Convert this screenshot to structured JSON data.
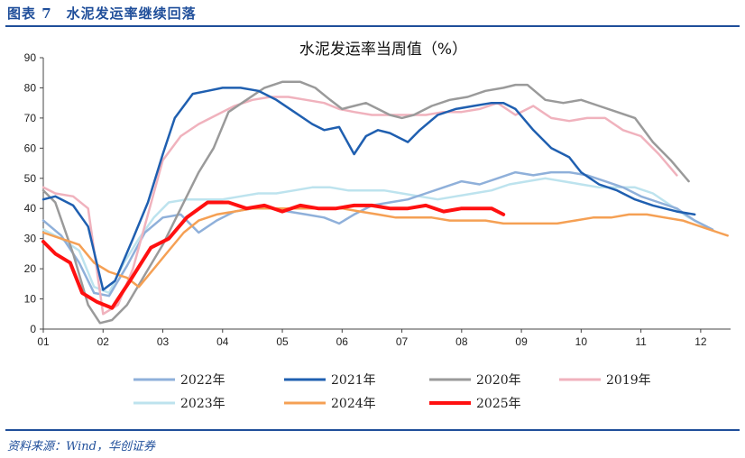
{
  "figure_label": "图表 7　水泥发运率继续回落",
  "source": "资料来源：Wind，华创证券",
  "chart_data": {
    "type": "line",
    "title": "水泥发运率当周值（%）",
    "xlabel": "",
    "ylabel": "",
    "x_ticks": [
      "01",
      "02",
      "03",
      "04",
      "05",
      "06",
      "07",
      "08",
      "09",
      "10",
      "11",
      "12"
    ],
    "xlim": [
      1,
      12.5
    ],
    "ylim": [
      0,
      90
    ],
    "y_ticks": [
      0,
      10,
      20,
      30,
      40,
      50,
      60,
      70,
      80,
      90
    ],
    "grid": false,
    "legend_position": "bottom",
    "series": [
      {
        "name": "2022年",
        "color": "#8fb0da",
        "width": 2.5,
        "x": [
          1.0,
          1.3,
          1.6,
          1.85,
          2.1,
          2.4,
          2.7,
          3.0,
          3.3,
          3.6,
          3.9,
          4.2,
          4.5,
          4.8,
          5.1,
          5.4,
          5.7,
          5.95,
          6.2,
          6.5,
          6.8,
          7.1,
          7.4,
          7.7,
          8.0,
          8.3,
          8.6,
          8.9,
          9.2,
          9.5,
          9.8,
          10.1,
          10.4,
          10.7,
          11.0,
          11.3,
          11.6,
          11.9,
          12.2
        ],
        "y": [
          36,
          31,
          22,
          12,
          11,
          21,
          32,
          37,
          38,
          32,
          36,
          39,
          40,
          40,
          39,
          38,
          37,
          35,
          38,
          41,
          42,
          43,
          45,
          47,
          49,
          48,
          50,
          52,
          51,
          52,
          52,
          51,
          49,
          47,
          44,
          42,
          40,
          36,
          33
        ]
      },
      {
        "name": "2021年",
        "color": "#1f5fb0",
        "width": 2.5,
        "x": [
          1.0,
          1.2,
          1.5,
          1.75,
          2.0,
          2.2,
          2.5,
          2.75,
          3.0,
          3.2,
          3.5,
          3.75,
          4.0,
          4.3,
          4.6,
          4.9,
          5.2,
          5.5,
          5.7,
          5.95,
          6.2,
          6.4,
          6.6,
          6.8,
          7.1,
          7.3,
          7.6,
          7.9,
          8.2,
          8.5,
          8.7,
          8.9,
          9.2,
          9.5,
          9.8,
          10.0,
          10.3,
          10.6,
          10.9,
          11.2,
          11.6,
          11.9
        ],
        "y": [
          43,
          44,
          41,
          34,
          13,
          16,
          30,
          42,
          58,
          70,
          78,
          79,
          80,
          80,
          79,
          76,
          72,
          68,
          66,
          67,
          58,
          64,
          66,
          65,
          62,
          66,
          71,
          73,
          74,
          75,
          75,
          73,
          66,
          60,
          57,
          52,
          48,
          46,
          43,
          41,
          39,
          38
        ]
      },
      {
        "name": "2020年",
        "color": "#9a9a9a",
        "width": 2.5,
        "x": [
          1.0,
          1.2,
          1.5,
          1.75,
          1.95,
          2.15,
          2.4,
          2.7,
          3.0,
          3.3,
          3.6,
          3.85,
          4.1,
          4.4,
          4.7,
          5.0,
          5.3,
          5.55,
          5.8,
          6.0,
          6.2,
          6.4,
          6.6,
          6.8,
          7.0,
          7.2,
          7.5,
          7.8,
          8.1,
          8.4,
          8.7,
          8.9,
          9.1,
          9.4,
          9.7,
          10.0,
          10.3,
          10.6,
          10.9,
          11.2,
          11.5,
          11.8
        ],
        "y": [
          46,
          42,
          25,
          8,
          2,
          3,
          8,
          18,
          28,
          40,
          52,
          60,
          72,
          76,
          80,
          82,
          82,
          80,
          76,
          73,
          74,
          75,
          73,
          71,
          70,
          71,
          74,
          76,
          77,
          79,
          80,
          81,
          81,
          76,
          75,
          76,
          74,
          72,
          70,
          62,
          56,
          49
        ]
      },
      {
        "name": "2019年",
        "color": "#f0b2bd",
        "width": 2.5,
        "x": [
          1.0,
          1.2,
          1.5,
          1.75,
          2.0,
          2.25,
          2.5,
          2.75,
          3.0,
          3.3,
          3.6,
          3.9,
          4.2,
          4.5,
          4.8,
          5.1,
          5.4,
          5.7,
          5.95,
          6.2,
          6.5,
          6.8,
          7.1,
          7.4,
          7.7,
          8.0,
          8.3,
          8.6,
          8.9,
          9.2,
          9.5,
          9.8,
          10.1,
          10.4,
          10.7,
          11.0,
          11.3,
          11.6
        ],
        "y": [
          47,
          45,
          44,
          40,
          5,
          8,
          20,
          38,
          56,
          64,
          68,
          71,
          74,
          76,
          77,
          77,
          76,
          75,
          73,
          72,
          71,
          71,
          71,
          71,
          72,
          72,
          73,
          75,
          71,
          74,
          70,
          69,
          70,
          70,
          66,
          64,
          58,
          51
        ]
      },
      {
        "name": "2023年",
        "color": "#bde3ee",
        "width": 2.5,
        "x": [
          1.0,
          1.3,
          1.6,
          1.85,
          2.1,
          2.35,
          2.6,
          2.85,
          3.1,
          3.4,
          3.7,
          4.0,
          4.3,
          4.6,
          4.9,
          5.2,
          5.5,
          5.8,
          6.1,
          6.4,
          6.7,
          7.0,
          7.3,
          7.6,
          7.9,
          8.2,
          8.5,
          8.8,
          9.1,
          9.4,
          9.7,
          10.0,
          10.3,
          10.6,
          10.9,
          11.2,
          11.5,
          11.8,
          12.1
        ],
        "y": [
          33,
          30,
          26,
          14,
          12,
          22,
          30,
          37,
          42,
          43,
          43,
          43,
          44,
          45,
          45,
          46,
          47,
          47,
          46,
          46,
          46,
          45,
          44,
          43,
          44,
          45,
          46,
          48,
          49,
          50,
          49,
          48,
          47,
          47,
          47,
          45,
          41,
          37,
          34
        ]
      },
      {
        "name": "2024年",
        "color": "#f5a054",
        "width": 2.5,
        "x": [
          1.0,
          1.3,
          1.6,
          1.85,
          2.1,
          2.4,
          2.6,
          2.85,
          3.1,
          3.35,
          3.6,
          3.9,
          4.2,
          4.5,
          4.8,
          5.1,
          5.4,
          5.7,
          6.0,
          6.3,
          6.6,
          6.9,
          7.2,
          7.5,
          7.8,
          8.1,
          8.4,
          8.7,
          9.0,
          9.3,
          9.6,
          9.9,
          10.2,
          10.5,
          10.8,
          11.1,
          11.4,
          11.7,
          12.0,
          12.3,
          12.45
        ],
        "y": [
          32,
          30,
          28,
          22,
          19,
          17,
          14,
          20,
          26,
          32,
          36,
          38,
          39,
          40,
          40,
          40,
          40,
          40,
          40,
          39,
          38,
          37,
          37,
          37,
          36,
          36,
          36,
          35,
          35,
          35,
          35,
          36,
          37,
          37,
          38,
          38,
          37,
          36,
          34,
          32,
          31
        ]
      },
      {
        "name": "2025年",
        "color": "#ff1010",
        "width": 4,
        "x": [
          1.0,
          1.2,
          1.45,
          1.65,
          1.9,
          2.15,
          2.45,
          2.8,
          3.1,
          3.4,
          3.75,
          4.1,
          4.4,
          4.7,
          5.0,
          5.3,
          5.6,
          5.9,
          6.2,
          6.5,
          6.8,
          7.1,
          7.4,
          7.7,
          8.0,
          8.3,
          8.5,
          8.7
        ],
        "y": [
          29,
          25,
          22,
          12,
          9,
          7,
          16,
          27,
          30,
          37,
          42,
          42,
          40,
          41,
          39,
          41,
          40,
          40,
          41,
          41,
          40,
          40,
          41,
          39,
          40,
          40,
          40,
          38
        ]
      }
    ]
  }
}
